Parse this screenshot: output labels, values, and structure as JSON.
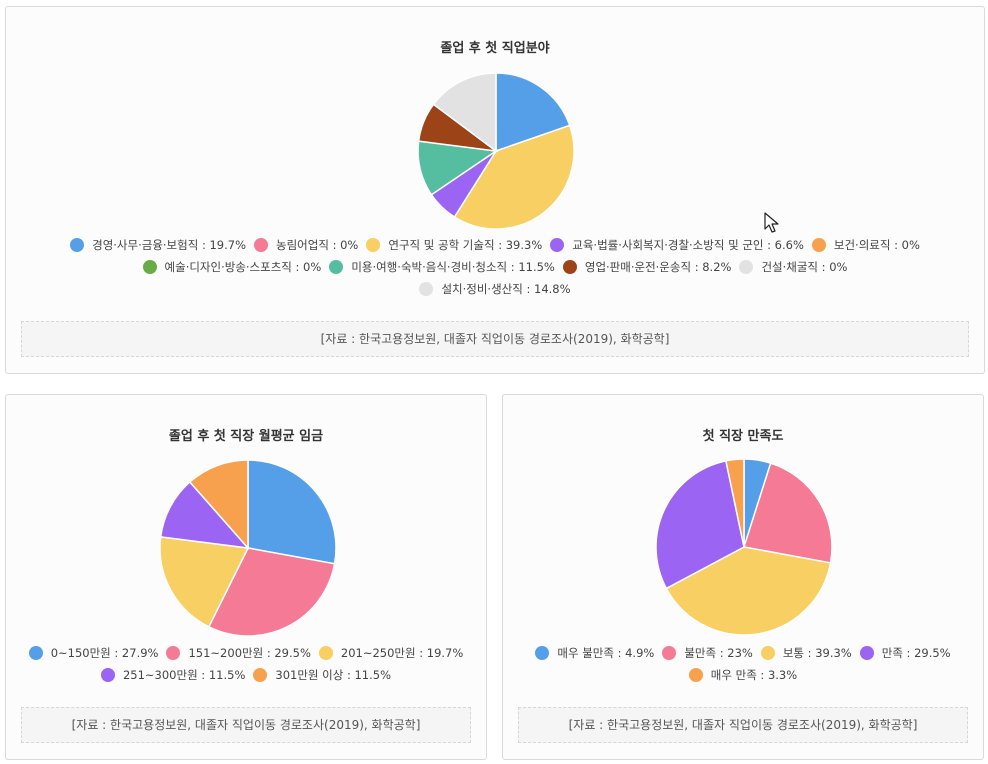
{
  "chart_data": [
    {
      "type": "pie",
      "title": "졸업 후 첫 직업분야",
      "source": "[자료 : 한국고용정보원, 대졸자 직업이동 경로조사(2019), 화학공학]",
      "slices": [
        {
          "label": "경영·사무·금융·보험직 : 19.7%",
          "value": 19.7,
          "color": "#559fe8"
        },
        {
          "label": "농림어업직 : 0%",
          "value": 0,
          "color": "#f47a96"
        },
        {
          "label": "연구직 및 공학 기술직 : 39.3%",
          "value": 39.3,
          "color": "#f7cf62"
        },
        {
          "label": "교육·법률·사회복지·경찰·소방직 및 군인 : 6.6%",
          "value": 6.6,
          "color": "#9c64f2"
        },
        {
          "label": "보건·의료직 : 0%",
          "value": 0,
          "color": "#f7a14f"
        },
        {
          "label": "예술·디자인·방송·스포츠직 : 0%",
          "value": 0,
          "color": "#6aaa47"
        },
        {
          "label": "미용·여행·숙박·음식·경비·청소직 : 11.5%",
          "value": 11.5,
          "color": "#56bea0"
        },
        {
          "label": "영업·판매·운전·운송직 : 8.2%",
          "value": 8.2,
          "color": "#9c4317"
        },
        {
          "label": "건설·채굴직 : 0%",
          "value": 0,
          "color": "#e2e2e2"
        },
        {
          "label": "설치·정비·생산직 : 14.8%",
          "value": 14.8,
          "color": "#e2e2e2"
        }
      ]
    },
    {
      "type": "pie",
      "title": "졸업 후 첫 직장 월평균 임금",
      "source": "[자료 : 한국고용정보원, 대졸자 직업이동 경로조사(2019), 화학공학]",
      "slices": [
        {
          "label": "0~150만원 : 27.9%",
          "value": 27.9,
          "color": "#559fe8"
        },
        {
          "label": "151~200만원 : 29.5%",
          "value": 29.5,
          "color": "#f47a96"
        },
        {
          "label": "201~250만원 : 19.7%",
          "value": 19.7,
          "color": "#f7cf62"
        },
        {
          "label": "251~300만원 : 11.5%",
          "value": 11.5,
          "color": "#9c64f2"
        },
        {
          "label": "301만원 이상 : 11.5%",
          "value": 11.5,
          "color": "#f7a14f"
        }
      ]
    },
    {
      "type": "pie",
      "title": "첫 직장 만족도",
      "source": "[자료 : 한국고용정보원, 대졸자 직업이동 경로조사(2019), 화학공학]",
      "slices": [
        {
          "label": "매우 불만족 : 4.9%",
          "value": 4.9,
          "color": "#559fe8"
        },
        {
          "label": "불만족 : 23%",
          "value": 23,
          "color": "#f47a96"
        },
        {
          "label": "보통 : 39.3%",
          "value": 39.3,
          "color": "#f7cf62"
        },
        {
          "label": "만족 : 29.5%",
          "value": 29.5,
          "color": "#9c64f2"
        },
        {
          "label": "매우 만족 : 3.3%",
          "value": 3.3,
          "color": "#f7a14f"
        }
      ]
    }
  ]
}
